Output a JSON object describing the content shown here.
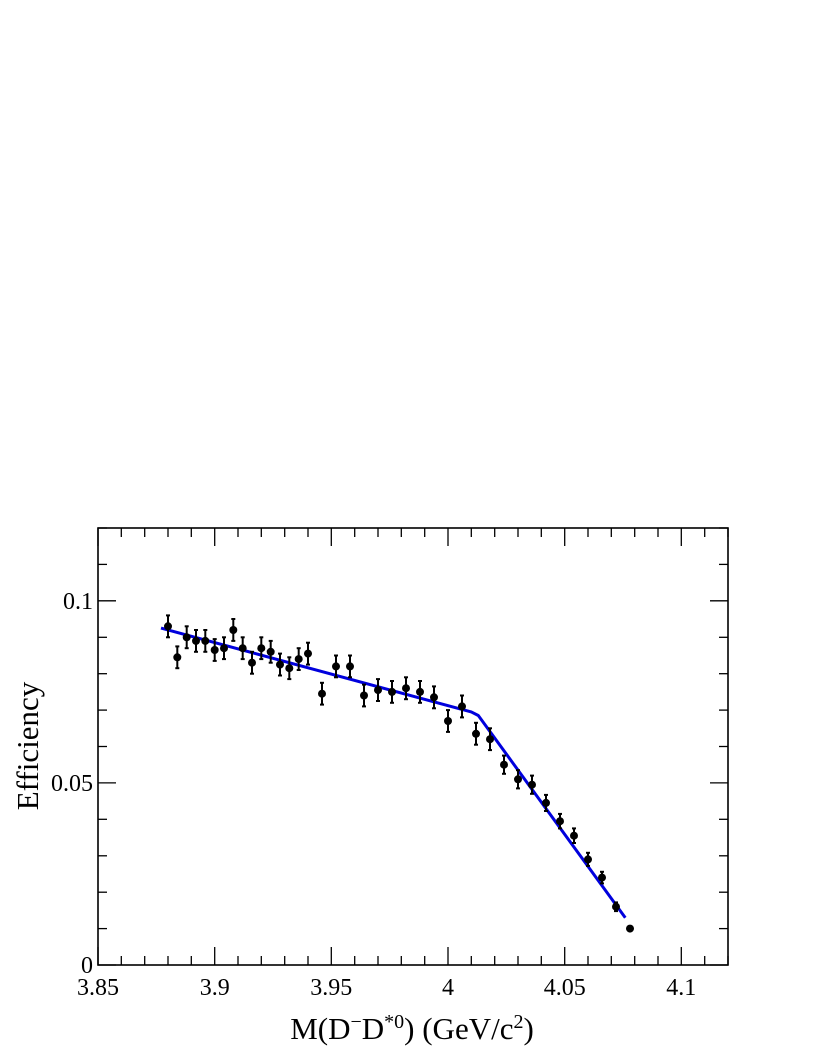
{
  "chart_data": {
    "type": "scatter",
    "xlabel": "M(D⁻D*0) (GeV/c2)",
    "ylabel": "Efficiency",
    "xlim": [
      3.85,
      4.12
    ],
    "ylim": [
      0,
      0.12
    ],
    "x_ticks": [
      "3.85",
      "3.9",
      "3.95",
      "4",
      "4.05",
      "4.1"
    ],
    "y_ticks": [
      "0",
      "0.05",
      "0.1"
    ],
    "x_tick_values": [
      3.85,
      3.9,
      3.95,
      4.0,
      4.05,
      4.1
    ],
    "y_tick_values": [
      0,
      0.05,
      0.1
    ],
    "grid": false,
    "legend": "none",
    "colors": {
      "points": "#000000",
      "fit": "#0000dd"
    },
    "series": [
      {
        "kind": "points-with-errors",
        "x": [
          3.88,
          3.884,
          3.888,
          3.892,
          3.896,
          3.9,
          3.904,
          3.908,
          3.912,
          3.916,
          3.92,
          3.924,
          3.928,
          3.932,
          3.936,
          3.94,
          3.946,
          3.952,
          3.958,
          3.964,
          3.97,
          3.976,
          3.982,
          3.988,
          3.994,
          4.0,
          4.006,
          4.012,
          4.018,
          4.024,
          4.03,
          4.036,
          4.042,
          4.048,
          4.054,
          4.06,
          4.066,
          4.072,
          4.078
        ],
        "y": [
          0.093,
          0.0845,
          0.09,
          0.089,
          0.089,
          0.0865,
          0.087,
          0.092,
          0.087,
          0.083,
          0.087,
          0.086,
          0.0825,
          0.0815,
          0.084,
          0.0855,
          0.0745,
          0.082,
          0.082,
          0.074,
          0.0755,
          0.075,
          0.076,
          0.075,
          0.0735,
          0.067,
          0.071,
          0.0635,
          0.062,
          0.055,
          0.051,
          0.0495,
          0.0445,
          0.0395,
          0.0355,
          0.029,
          0.024,
          0.016,
          0.01
        ],
        "err": [
          0.003,
          0.003,
          0.003,
          0.003,
          0.003,
          0.003,
          0.003,
          0.003,
          0.003,
          0.003,
          0.003,
          0.003,
          0.003,
          0.003,
          0.003,
          0.003,
          0.003,
          0.003,
          0.003,
          0.003,
          0.003,
          0.003,
          0.003,
          0.003,
          0.003,
          0.003,
          0.003,
          0.003,
          0.003,
          0.0025,
          0.0025,
          0.0025,
          0.0022,
          0.002,
          0.002,
          0.0018,
          0.0016,
          0.0012,
          0.0005
        ]
      },
      {
        "kind": "fit-line",
        "x": [
          3.877,
          4.01,
          4.013,
          4.076
        ],
        "y": [
          0.0925,
          0.0695,
          0.0685,
          0.013
        ]
      }
    ]
  }
}
